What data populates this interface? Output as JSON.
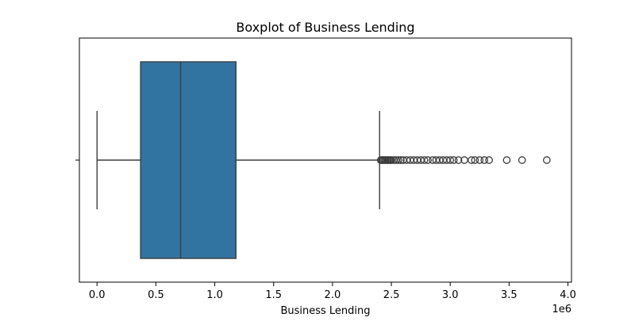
{
  "chart_data": {
    "type": "boxplot",
    "title": "Boxplot of Business Lending",
    "xlabel": "Business Lending",
    "ylabel": "",
    "x_offset_text": "1e6",
    "xlim": [
      -0.15,
      4.03
    ],
    "x_ticks": [
      0.0,
      0.5,
      1.0,
      1.5,
      2.0,
      2.5,
      3.0,
      3.5,
      4.0
    ],
    "x_tick_labels": [
      "0.0",
      "0.5",
      "1.0",
      "1.5",
      "2.0",
      "2.5",
      "3.0",
      "3.5",
      "4.0"
    ],
    "grid": false,
    "box": {
      "whisker_low": 0.0,
      "q1": 0.37,
      "median": 0.71,
      "q3": 1.18,
      "whisker_high": 2.4,
      "outliers": [
        2.41,
        2.42,
        2.43,
        2.44,
        2.45,
        2.46,
        2.47,
        2.48,
        2.49,
        2.5,
        2.52,
        2.54,
        2.56,
        2.58,
        2.6,
        2.63,
        2.66,
        2.69,
        2.72,
        2.75,
        2.78,
        2.81,
        2.85,
        2.88,
        2.91,
        2.94,
        2.97,
        3.0,
        3.03,
        3.07,
        3.12,
        3.18,
        3.21,
        3.25,
        3.29,
        3.33,
        3.48,
        3.61,
        3.82
      ]
    },
    "colors": {
      "box_fill": "#3274a1",
      "line": "#3d3d3d",
      "axis": "#000000"
    }
  }
}
